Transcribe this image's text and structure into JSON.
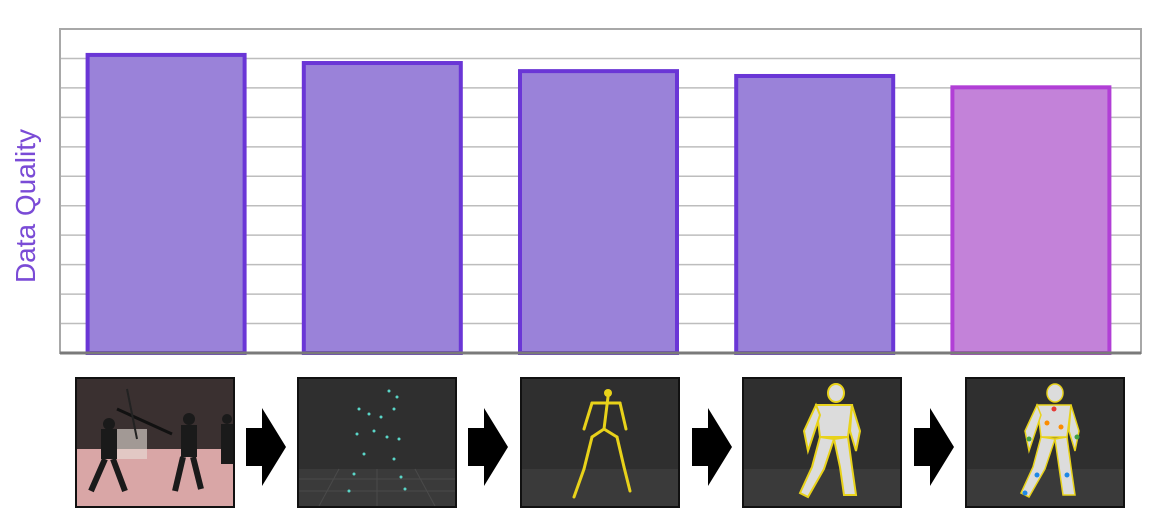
{
  "colors": {
    "bar_fill": "#9a82d9",
    "bar_stroke": "#6a36d6",
    "last_bar_fill": "#c382d9",
    "last_bar_stroke": "#b13fd6",
    "ylabel": "#7a4bd6",
    "grid": "#bdbdbd",
    "frame": "#a8a8a8"
  },
  "chart_data": {
    "type": "bar",
    "categories": [
      "",
      "",
      "",
      "",
      ""
    ],
    "values": [
      0.92,
      0.895,
      0.87,
      0.855,
      0.82
    ],
    "ylabel": "Data Quality",
    "xlabel": "",
    "title": "",
    "ylim": [
      0,
      1
    ],
    "grid": true,
    "legend": "none",
    "stage_images": [
      "motion-capture-photo",
      "marker-point-cloud",
      "stick-skeleton",
      "skinned-mesh-character",
      "mesh-character-with-joint-markers"
    ]
  }
}
